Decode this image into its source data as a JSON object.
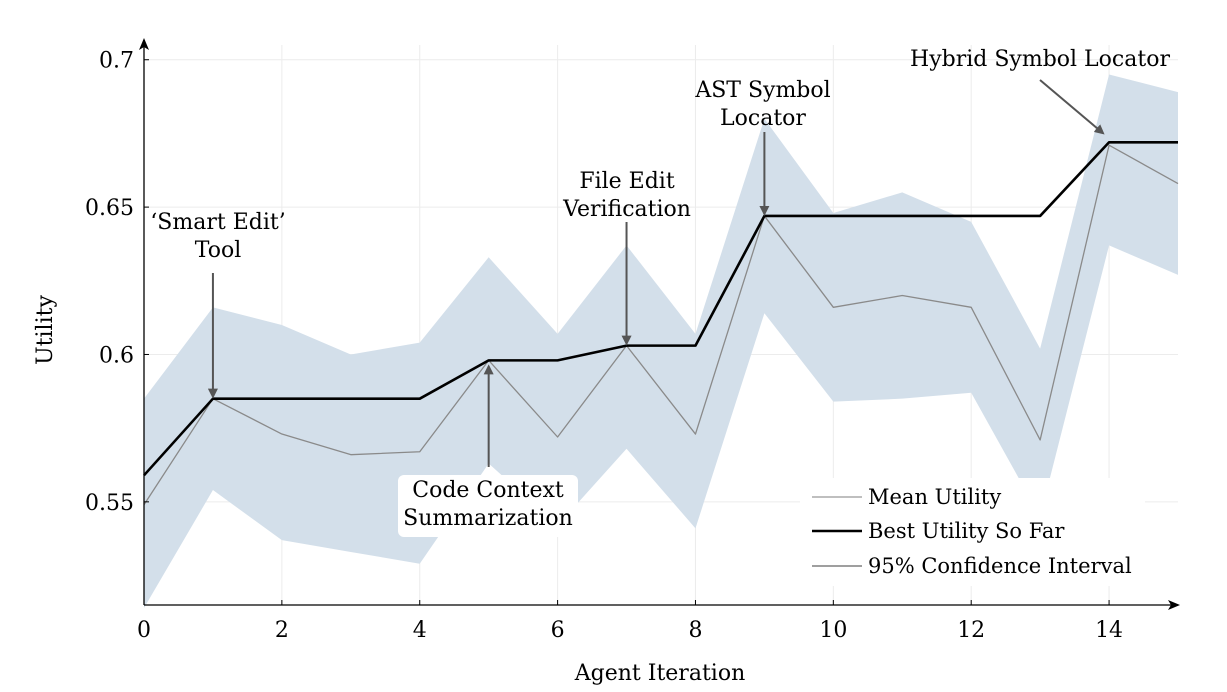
{
  "chart_data": {
    "type": "line",
    "xlabel": "Agent Iteration",
    "ylabel": "Utility",
    "xlim": [
      0,
      15
    ],
    "ylim": [
      0.515,
      0.705
    ],
    "xticks": [
      0,
      2,
      4,
      6,
      8,
      10,
      12,
      14
    ],
    "yticks": [
      0.55,
      0.6,
      0.65,
      0.7
    ],
    "ytick_labels": [
      "0.55",
      "0.6",
      "0.65",
      "0.7"
    ],
    "grid": true,
    "legend_position": "bottom-right",
    "x": [
      0,
      1,
      2,
      3,
      4,
      5,
      6,
      7,
      8,
      9,
      10,
      11,
      12,
      13,
      14,
      15
    ],
    "series": [
      {
        "name": "Mean Utility",
        "color": "#8a8a8a",
        "values": [
          0.549,
          0.585,
          0.573,
          0.566,
          0.567,
          0.598,
          0.572,
          0.603,
          0.573,
          0.647,
          0.616,
          0.62,
          0.616,
          0.571,
          0.671,
          0.658
        ]
      },
      {
        "name": "Best Utility So Far",
        "color": "#000000",
        "values": [
          0.559,
          0.585,
          0.585,
          0.585,
          0.585,
          0.598,
          0.598,
          0.603,
          0.603,
          0.647,
          0.647,
          0.647,
          0.647,
          0.647,
          0.672,
          0.672
        ]
      }
    ],
    "confidence_interval": {
      "name": "95% Confidence Interval",
      "color": "#d3dfea",
      "upper": [
        0.585,
        0.616,
        0.61,
        0.6,
        0.604,
        0.633,
        0.607,
        0.637,
        0.607,
        0.68,
        0.648,
        0.655,
        0.645,
        0.602,
        0.695,
        0.689
      ],
      "lower": [
        0.514,
        0.554,
        0.537,
        0.533,
        0.529,
        0.563,
        0.542,
        0.568,
        0.541,
        0.614,
        0.584,
        0.585,
        0.587,
        0.545,
        0.637,
        0.627
      ]
    },
    "annotations": [
      {
        "lines": [
          "‘Smart Edit’",
          "Tool"
        ],
        "x": 1,
        "y": 0.585,
        "direction": "down"
      },
      {
        "lines": [
          "Code Context",
          "Summarization"
        ],
        "x": 5,
        "y": 0.598,
        "direction": "up"
      },
      {
        "lines": [
          "File Edit",
          "Verification"
        ],
        "x": 7,
        "y": 0.603,
        "direction": "down"
      },
      {
        "lines": [
          "AST Symbol",
          "Locator"
        ],
        "x": 9,
        "y": 0.647,
        "direction": "down"
      },
      {
        "lines": [
          "Hybrid Symbol Locator"
        ],
        "x": 14,
        "y": 0.672,
        "direction": "diagonal"
      }
    ]
  }
}
